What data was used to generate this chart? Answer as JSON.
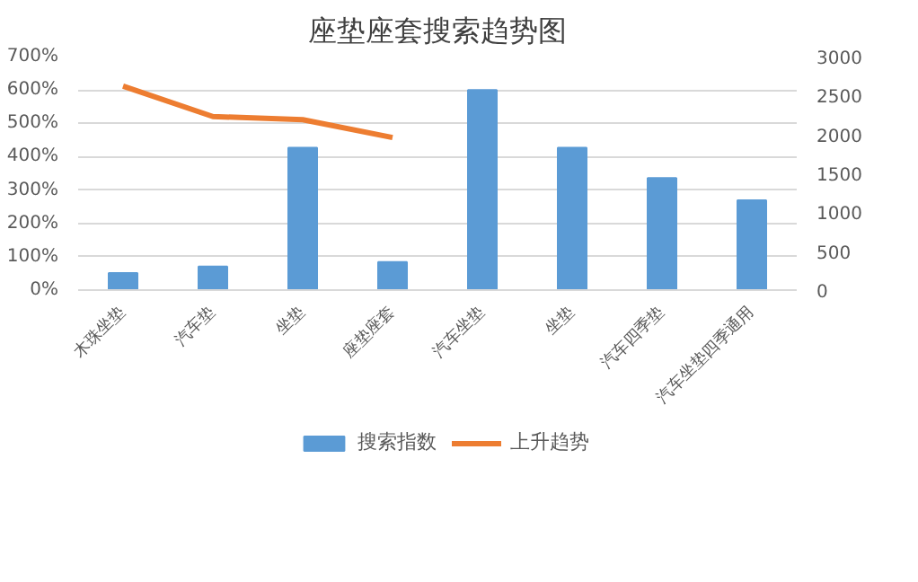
{
  "chart_data": {
    "type": "bar",
    "title": "座垫座套搜索趋势图",
    "categories": [
      "木珠坐垫",
      "汽车垫",
      "坐垫",
      "座垫座套",
      "汽车坐垫",
      "坐垫",
      "汽车四季垫",
      "汽车坐垫四季通用"
    ],
    "series": [
      {
        "name": "搜索指数",
        "color": "#5b9bd5",
        "type": "bar",
        "values": [
          51,
          71,
          427,
          84,
          600,
          427,
          336,
          269
        ]
      },
      {
        "name": "上升趋势",
        "color": "#ed7d31",
        "type": "line",
        "axis": "y2",
        "values": [
          2620,
          2230,
          2190,
          1960,
          null,
          null,
          null,
          null
        ]
      }
    ],
    "ylim": [
      0,
      700
    ],
    "yticks": [
      {
        "value": 0,
        "label": "0%"
      },
      {
        "value": 100,
        "label": "100%"
      },
      {
        "value": 200,
        "label": "200%"
      },
      {
        "value": 300,
        "label": "300%"
      },
      {
        "value": 400,
        "label": "400%"
      },
      {
        "value": 500,
        "label": "500%"
      },
      {
        "value": 600,
        "label": "600%"
      },
      {
        "value": 700,
        "label": "700%"
      }
    ],
    "y2lim": [
      0,
      3000
    ],
    "y2ticks": [
      0,
      500,
      1000,
      1500,
      2000,
      2500,
      3000
    ],
    "grid": "y",
    "legend": "bottom"
  }
}
